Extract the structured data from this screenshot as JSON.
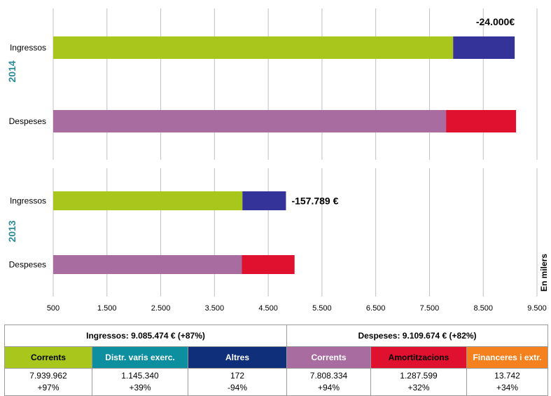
{
  "chart_data": {
    "type": "bar",
    "orientation": "horizontal",
    "stacked": true,
    "units_label": "En milers",
    "xlim": [
      500,
      9500
    ],
    "x_ticks": [
      "500",
      "1.500",
      "2.500",
      "3.500",
      "4.500",
      "5.500",
      "6.500",
      "7.500",
      "8.500",
      "9.500"
    ],
    "x_tick_values": [
      500,
      1500,
      2500,
      3500,
      4500,
      5500,
      6500,
      7500,
      8500,
      9500
    ],
    "grid": "vertical",
    "colors": {
      "ingressos_corrents": "#a8c61c",
      "ingressos_altres": "#333399",
      "despeses_corrents": "#a86ca0",
      "despeses_altres": "#e0102f"
    },
    "panels": [
      {
        "year": "2014",
        "difference_label": "-24.000€",
        "bars": [
          {
            "label": "Ingressos",
            "segments": [
              {
                "key": "ingressos_corrents",
                "start": 500,
                "end": 7940
              },
              {
                "key": "ingressos_altres",
                "start": 7940,
                "end": 9085
              }
            ]
          },
          {
            "label": "Despeses",
            "segments": [
              {
                "key": "despeses_corrents",
                "start": 500,
                "end": 7808
              },
              {
                "key": "despeses_altres",
                "start": 7808,
                "end": 9110
              }
            ]
          }
        ]
      },
      {
        "year": "2013",
        "difference_label": "-157.789 €",
        "bars": [
          {
            "label": "Ingressos",
            "segments": [
              {
                "key": "ingressos_corrents",
                "start": 500,
                "end": 4020
              },
              {
                "key": "ingressos_altres",
                "start": 4020,
                "end": 4830
              }
            ]
          },
          {
            "label": "Despeses",
            "segments": [
              {
                "key": "despeses_corrents",
                "start": 500,
                "end": 4010
              },
              {
                "key": "despeses_altres",
                "start": 4010,
                "end": 4990
              }
            ]
          }
        ]
      }
    ]
  },
  "summary": {
    "ingressos_title": "Ingressos: 9.085.474 € (+87%)",
    "despeses_title": "Despeses: 9.109.674 € (+82%)",
    "columns": [
      {
        "label": "Corrents",
        "bg": "#a8c61c",
        "fg": "#000000",
        "value": "7.939.962",
        "change": "+97%"
      },
      {
        "label": "Distr. varis exerc.",
        "bg": "#0e8fa0",
        "fg": "#ffffff",
        "value": "1.145.340",
        "change": "+39%"
      },
      {
        "label": "Altres",
        "bg": "#0f2f7a",
        "fg": "#ffffff",
        "value": "172",
        "change": "-94%"
      },
      {
        "label": "Corrents",
        "bg": "#a86ca0",
        "fg": "#ffffff",
        "value": "7.808.334",
        "change": "+94%"
      },
      {
        "label": "Amortitzacions",
        "bg": "#e0102f",
        "fg": "#000000",
        "value": "1.287.599",
        "change": "+32%"
      },
      {
        "label": "Financeres i extr.",
        "bg": "#f4801e",
        "fg": "#ffffff",
        "value": "13.742",
        "change": "+34%"
      }
    ]
  }
}
